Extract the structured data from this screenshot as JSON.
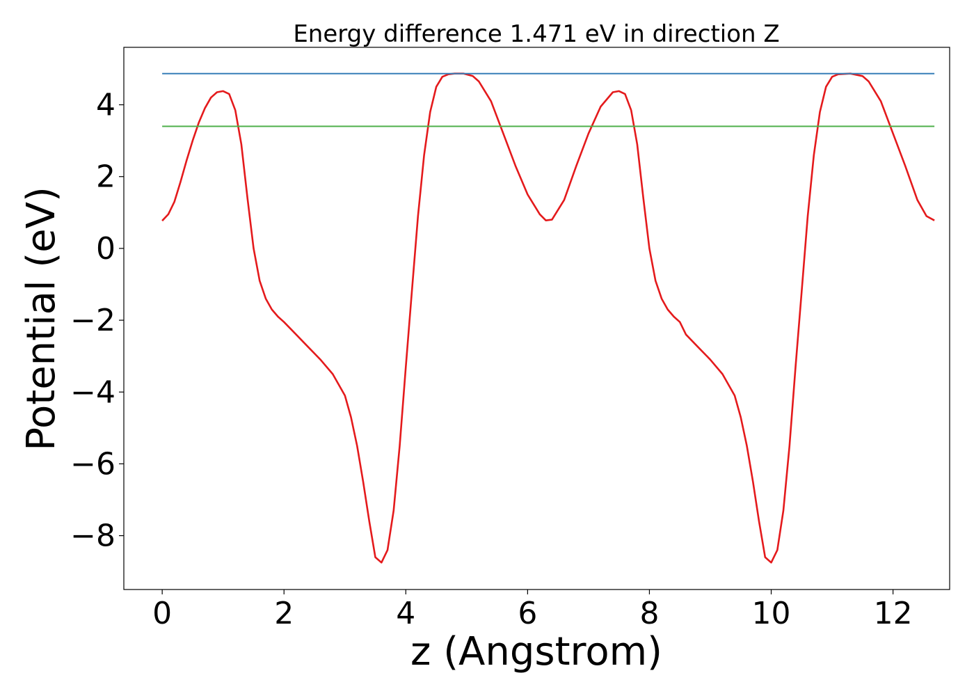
{
  "chart_data": {
    "type": "line",
    "title": "Energy difference 1.471 eV in direction Z",
    "xlabel": "z (Angstrom)",
    "ylabel": "Potential (eV)",
    "xlim": [
      -0.63,
      12.93
    ],
    "ylim": [
      -9.5,
      5.6
    ],
    "xticks": [
      0,
      2,
      4,
      6,
      8,
      10,
      12
    ],
    "yticks": [
      -8,
      -6,
      -4,
      -2,
      0,
      2,
      4
    ],
    "xtick_labels": [
      "0",
      "2",
      "4",
      "6",
      "8",
      "10",
      "12"
    ],
    "ytick_labels": [
      "−8",
      "−6",
      "−4",
      "−2",
      "0",
      "2",
      "4"
    ],
    "grid": false,
    "series": [
      {
        "color": "#e41a1c",
        "kind": "line",
        "x": [
          0.0,
          0.1,
          0.2,
          0.3,
          0.4,
          0.5,
          0.6,
          0.7,
          0.8,
          0.9,
          1.0,
          1.1,
          1.2,
          1.3,
          1.4,
          1.5,
          1.6,
          1.7,
          1.8,
          1.9,
          2.0,
          2.2,
          2.4,
          2.6,
          2.8,
          3.0,
          3.1,
          3.2,
          3.3,
          3.4,
          3.5,
          3.6,
          3.7,
          3.8,
          3.9,
          4.0,
          4.1,
          4.2,
          4.3,
          4.4,
          4.5,
          4.6,
          4.7,
          4.8,
          4.95,
          5.1,
          5.2,
          5.4,
          5.6,
          5.8,
          6.0,
          6.2,
          6.3,
          6.4,
          6.6,
          6.8,
          7.0,
          7.2,
          7.4,
          7.5,
          7.6,
          7.7,
          7.8,
          7.9,
          8.0,
          8.1,
          8.2,
          8.3,
          8.4,
          8.5,
          8.6,
          8.8,
          9.0,
          9.2,
          9.4,
          9.5,
          9.6,
          9.7,
          9.8,
          9.9,
          10.0,
          10.1,
          10.2,
          10.3,
          10.4,
          10.5,
          10.6,
          10.7,
          10.8,
          10.9,
          11.0,
          11.1,
          11.3,
          11.5,
          11.6,
          11.8,
          12.0,
          12.2,
          12.4,
          12.55,
          12.68
        ],
        "values": [
          0.77,
          0.95,
          1.3,
          1.85,
          2.45,
          3.0,
          3.5,
          3.9,
          4.2,
          4.35,
          4.38,
          4.3,
          3.85,
          2.9,
          1.4,
          0.0,
          -0.9,
          -1.4,
          -1.7,
          -1.9,
          -2.05,
          -2.4,
          -2.75,
          -3.1,
          -3.5,
          -4.1,
          -4.7,
          -5.5,
          -6.5,
          -7.6,
          -8.6,
          -8.75,
          -8.4,
          -7.3,
          -5.5,
          -3.3,
          -1.2,
          0.9,
          2.6,
          3.8,
          4.5,
          4.78,
          4.85,
          4.87,
          4.87,
          4.8,
          4.65,
          4.1,
          3.2,
          2.3,
          1.5,
          0.95,
          0.78,
          0.8,
          1.35,
          2.3,
          3.2,
          3.95,
          4.35,
          4.38,
          4.3,
          3.85,
          2.9,
          1.4,
          0.0,
          -0.9,
          -1.4,
          -1.7,
          -1.9,
          -2.05,
          -2.4,
          -2.75,
          -3.1,
          -3.5,
          -4.1,
          -4.7,
          -5.5,
          -6.5,
          -7.6,
          -8.6,
          -8.75,
          -8.4,
          -7.3,
          -5.5,
          -3.3,
          -1.2,
          0.9,
          2.6,
          3.8,
          4.5,
          4.78,
          4.85,
          4.87,
          4.8,
          4.65,
          4.1,
          3.2,
          2.3,
          1.35,
          0.9,
          0.78
        ]
      },
      {
        "color": "#377eb8",
        "kind": "hline",
        "x": [
          0.0,
          12.68
        ],
        "values": [
          4.87,
          4.87
        ]
      },
      {
        "color": "#4daf4a",
        "kind": "hline",
        "x": [
          0.0,
          12.68
        ],
        "values": [
          3.4,
          3.4
        ]
      }
    ]
  }
}
